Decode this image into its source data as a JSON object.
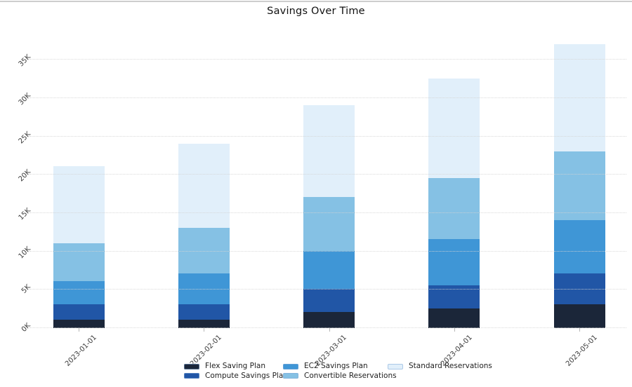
{
  "title": "Savings Over Time",
  "colors": {
    "flex": "#1b2639",
    "compute": "#2156a6",
    "ec2": "#3f96d6",
    "convertible": "#85c1e4",
    "standard": "#e1effa",
    "gridline": "#d4d4d4"
  },
  "chart_data": {
    "type": "bar",
    "stacked": true,
    "title": "Savings Over Time",
    "xlabel": "",
    "ylabel": "",
    "categories": [
      "2023-01-01",
      "2023-02-01",
      "2023-03-01",
      "2023-04-01",
      "2023-05-01"
    ],
    "series": [
      {
        "name": "Flex Saving Plan",
        "color": "#1b2639",
        "values": [
          1000,
          1000,
          2000,
          2500,
          3000
        ]
      },
      {
        "name": "Compute Savings Plan",
        "color": "#2156a6",
        "values": [
          2000,
          2000,
          3000,
          3000,
          4000
        ]
      },
      {
        "name": "EC2 Savings Plan",
        "color": "#3f96d6",
        "values": [
          3000,
          4000,
          5000,
          6000,
          7000
        ]
      },
      {
        "name": "Convertible Reservations",
        "color": "#85c1e4",
        "values": [
          5000,
          6000,
          7000,
          8000,
          9000
        ]
      },
      {
        "name": "Standard Reservations",
        "color": "#e1effa",
        "values": [
          10000,
          11000,
          12000,
          13000,
          14000
        ]
      }
    ],
    "totals": [
      21000,
      24000,
      29000,
      32500,
      37000
    ],
    "ylim": [
      0,
      37000
    ],
    "y_ticks": [
      {
        "label": "0K",
        "value": 0
      },
      {
        "label": "5K",
        "value": 5000
      },
      {
        "label": "10K",
        "value": 10000
      },
      {
        "label": "15K",
        "value": 15000
      },
      {
        "label": "20K",
        "value": 20000
      },
      {
        "label": "25K",
        "value": 25000
      },
      {
        "label": "30K",
        "value": 30000
      },
      {
        "label": "35K",
        "value": 35000
      }
    ],
    "grid": "horizontal-dotted",
    "legend_position": "bottom",
    "legend_columns": [
      [
        "Flex Saving Plan",
        "Compute Savings Plan"
      ],
      [
        "EC2 Savings Plan",
        "Convertible Reservations"
      ],
      [
        "Standard Reservations"
      ]
    ]
  }
}
